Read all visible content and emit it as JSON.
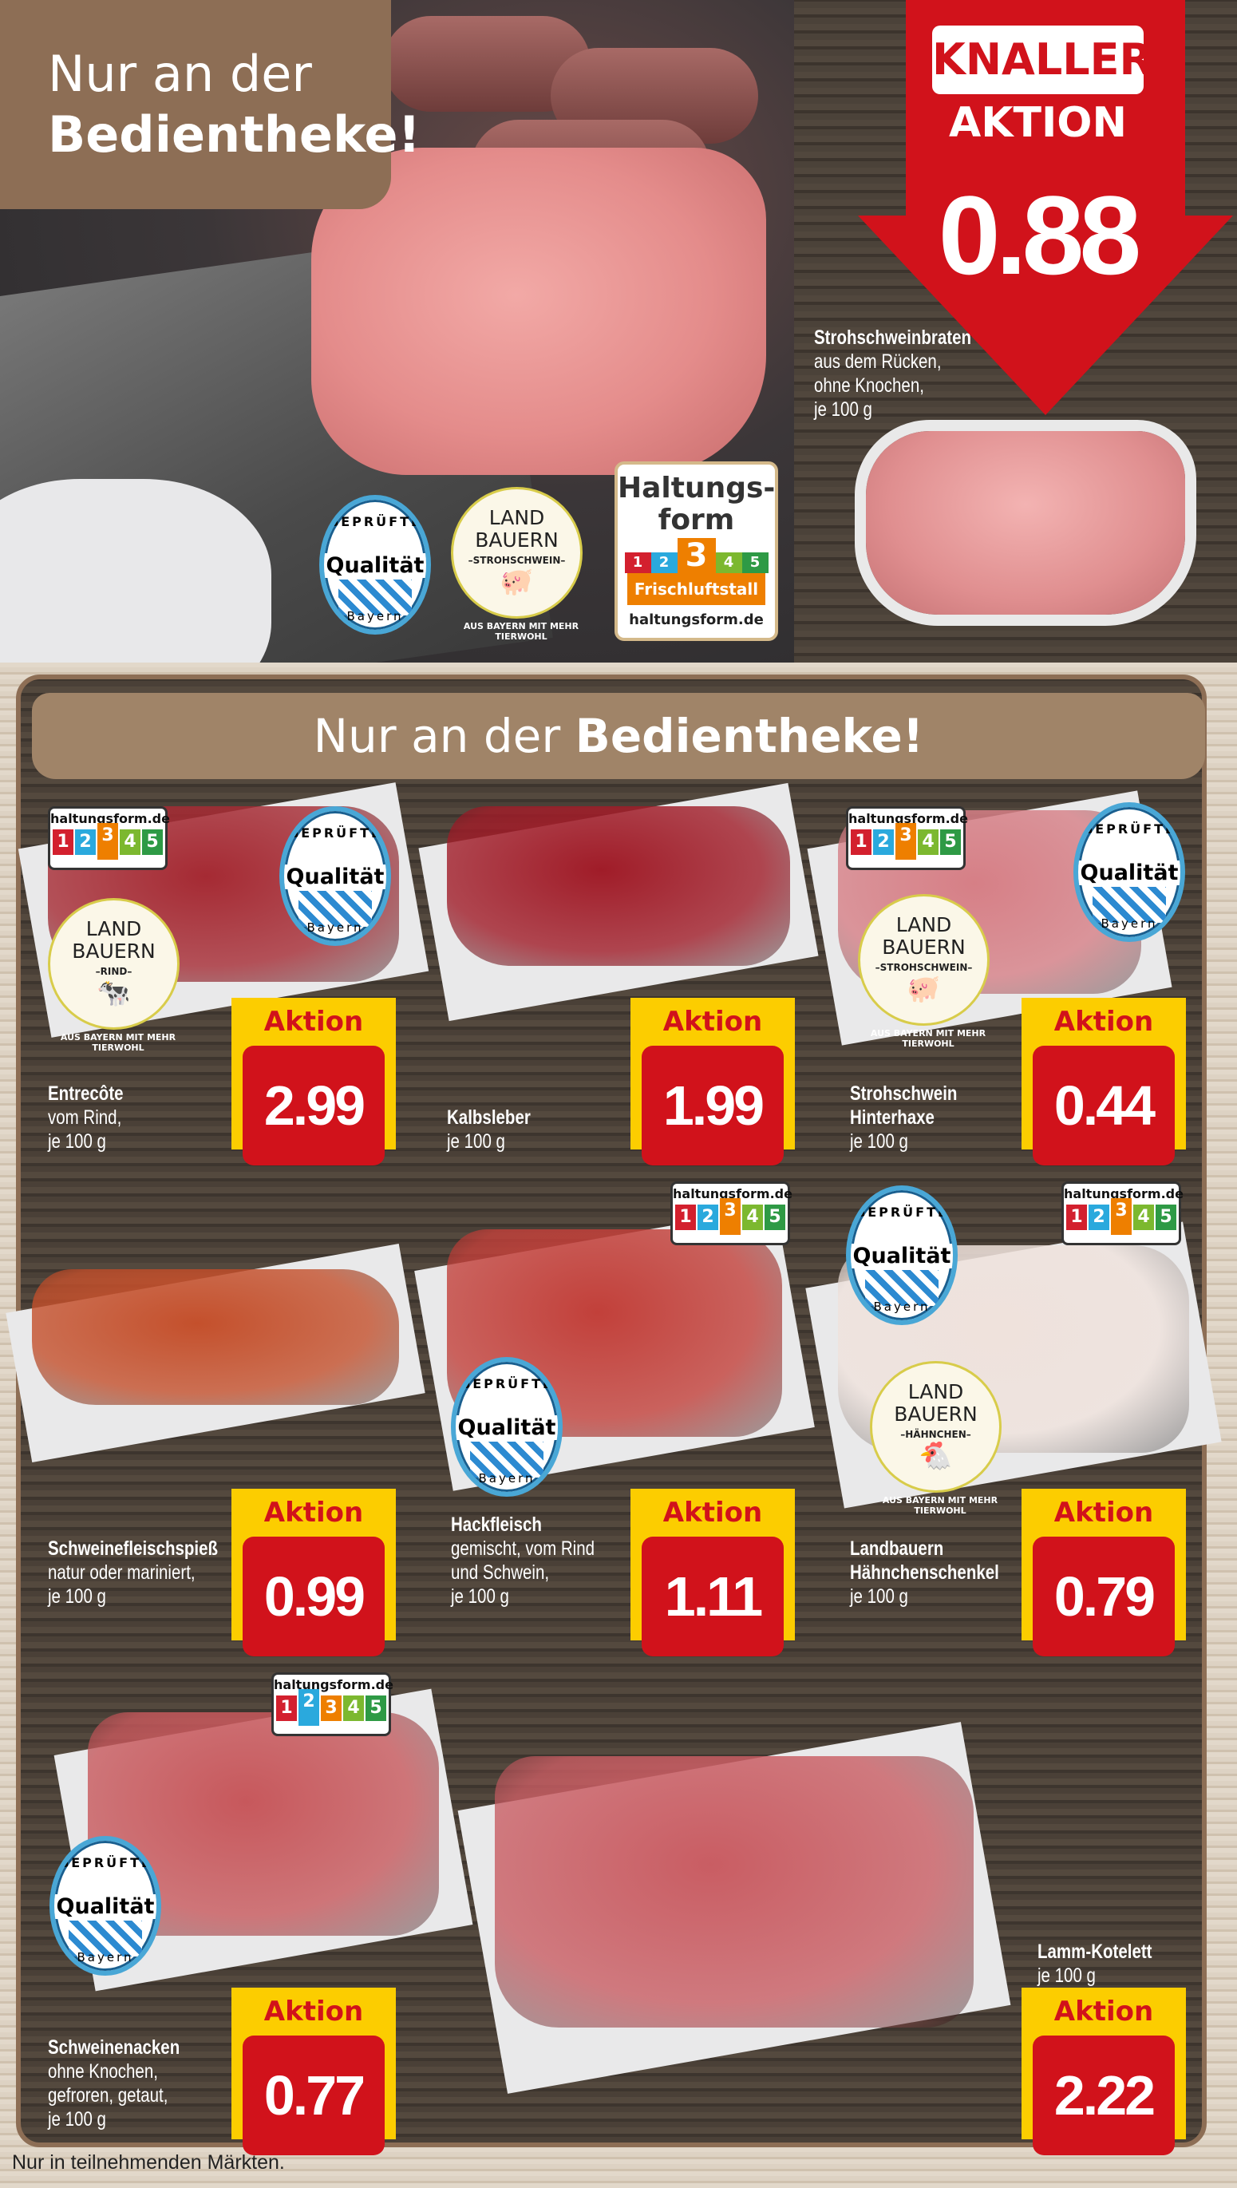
{
  "hero": {
    "title_line1": "Nur an der",
    "title_line2": "Bedientheke!"
  },
  "knaller": {
    "label1": "KNALLER",
    "label2": "AKTION",
    "price": "0.88",
    "product": {
      "name": "Strohschweinbraten",
      "lines": [
        "aus dem Rücken,",
        "ohne Knochen,",
        "je 100 g"
      ]
    }
  },
  "badges": {
    "qualitaet": {
      "top": "GEPRÜFTE",
      "mid": "Qualität",
      "bottom": "Bayern"
    },
    "landbauern_schwein": {
      "line1": "LAND",
      "line2": "BAUERN",
      "type": "–STROHSCHWEIN–",
      "ring": "AUS BAYERN MIT MEHR TIERWOHL",
      "icon": "pig-icon"
    },
    "landbauern_rind": {
      "line1": "LAND",
      "line2": "BAUERN",
      "type": "–RIND–",
      "ring": "AUS BAYERN MIT MEHR TIERWOHL",
      "icon": "cow-icon"
    },
    "landbauern_haehnchen": {
      "line1": "LAND",
      "line2": "BAUERN",
      "type": "–HÄHNCHEN–",
      "ring": "AUS BAYERN MIT MEHR TIERWOHL",
      "icon": "chicken-icon"
    },
    "haltungsform_big": {
      "title1": "Haltungs-",
      "title2": "form",
      "levels": [
        "1",
        "2",
        "3",
        "4",
        "5"
      ],
      "active": 3,
      "label": "Frischluftstall",
      "url": "haltungsform.de"
    },
    "haltungsform_small": {
      "url": "haltungsform.de",
      "levels": [
        "1",
        "2",
        "3",
        "4",
        "5"
      ]
    },
    "level_colors": [
      "#d3202e",
      "#2aa9dd",
      "#ee7f00",
      "#7cb82f",
      "#2e9a45"
    ]
  },
  "section": {
    "banner_prefix": "Nur an der ",
    "banner_bold": "Bedientheke!"
  },
  "aktion_label": "Aktion",
  "products": [
    {
      "name": "Entrecôte",
      "lines": [
        "vom Rind,",
        "je 100 g"
      ],
      "price": "2.99",
      "haltungsform": 3
    },
    {
      "name": "Kalbsleber",
      "lines": [
        "je 100 g"
      ],
      "price": "1.99"
    },
    {
      "name": "Strohschwein",
      "name2": "Hinterhaxe",
      "lines": [
        "je 100 g"
      ],
      "price": "0.44",
      "haltungsform": 3
    },
    {
      "name": "Schweinefleischspieß",
      "lines": [
        "natur oder mariniert,",
        "je 100 g"
      ],
      "price": "0.99"
    },
    {
      "name": "Hackfleisch",
      "lines": [
        "gemischt, vom Rind",
        "und Schwein,",
        "je 100 g"
      ],
      "price": "1.11",
      "haltungsform": 3
    },
    {
      "name": "Landbauern",
      "name2": "Hähnchenschenkel",
      "lines": [
        "je 100 g"
      ],
      "price": "0.79",
      "haltungsform": 3
    },
    {
      "name": "Schweinenacken",
      "lines": [
        "ohne Knochen,",
        "gefroren, getaut,",
        "je 100 g"
      ],
      "price": "0.77",
      "haltungsform": 2
    },
    {
      "name": "Lamm-Kotelett",
      "lines": [
        "je 100 g"
      ],
      "price": "2.22"
    }
  ],
  "footer": "Nur in teilnehmenden Märkten."
}
